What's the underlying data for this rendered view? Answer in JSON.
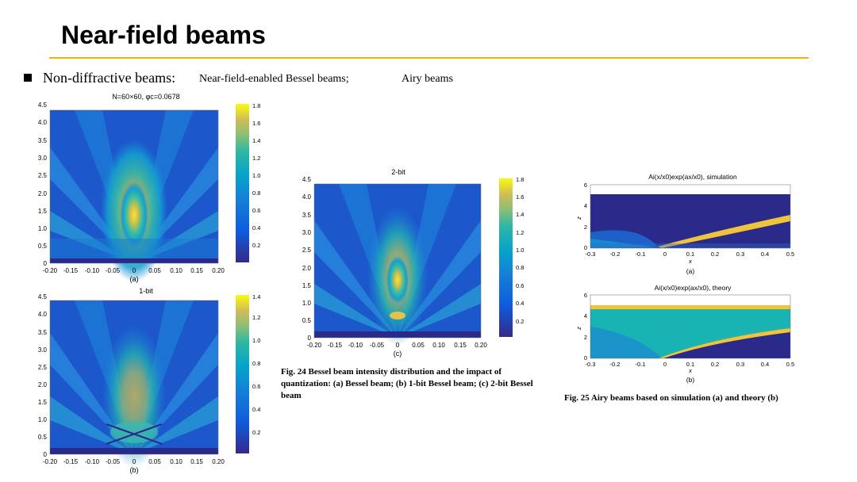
{
  "slide": {
    "title": "Near-field beams",
    "bullet": {
      "label": "Non-diffractive beams:",
      "item1": "Near-field-enabled Bessel beams;",
      "item2": "Airy beams"
    },
    "accent_color": "#f0b400"
  },
  "fig24": {
    "caption": "Fig. 24  Bessel beam intensity distribution and the impact of quantization: (a) Bessel beam; (b) 1-bit Bessel beam; (c) 2-bit Bessel beam",
    "panel_a": {
      "title": "N=60×60, φc=0.0678",
      "label": "(a)"
    },
    "panel_b": {
      "title": "1-bit",
      "label": "(b)"
    },
    "panel_c": {
      "title": "2-bit",
      "label": "(c)"
    },
    "x_ticks": [
      "-0.20",
      "-0.15",
      "-0.10",
      "-0.05",
      "0",
      "0.05",
      "0.10",
      "0.15",
      "0.20"
    ],
    "y_ticks": [
      "0",
      "0.5",
      "1.0",
      "1.5",
      "2.0",
      "2.5",
      "3.0",
      "3.5",
      "4.0",
      "4.5"
    ],
    "cbar_a": [
      "0.2",
      "0.4",
      "0.6",
      "0.8",
      "1.0",
      "1.2",
      "1.4",
      "1.6",
      "1.8"
    ],
    "cbar_b": [
      "0.2",
      "0.4",
      "0.6",
      "0.8",
      "1.0",
      "1.2",
      "1.4"
    ],
    "cbar_c": [
      "0.2",
      "0.4",
      "0.6",
      "0.8",
      "1.0",
      "1.2",
      "1.4",
      "1.6",
      "1.8"
    ]
  },
  "fig25": {
    "caption": "Fig. 25  Airy beams based on simulation (a) and theory (b)",
    "panel_a": {
      "title": "Ai(x/x0)exp(ax/x0), simulation",
      "label": "(a)",
      "xlabel": "x",
      "ylabel": "z"
    },
    "panel_b": {
      "title": "Ai(x/x0)exp(ax/x0), theory",
      "label": "(b)",
      "xlabel": "x",
      "ylabel": "z"
    },
    "x_ticks": [
      "-0.3",
      "-0.2",
      "-0.1",
      "0",
      "0.1",
      "0.2",
      "0.3",
      "0.4",
      "0.5"
    ],
    "y_ticks": [
      "0",
      "2",
      "4",
      "6"
    ]
  }
}
